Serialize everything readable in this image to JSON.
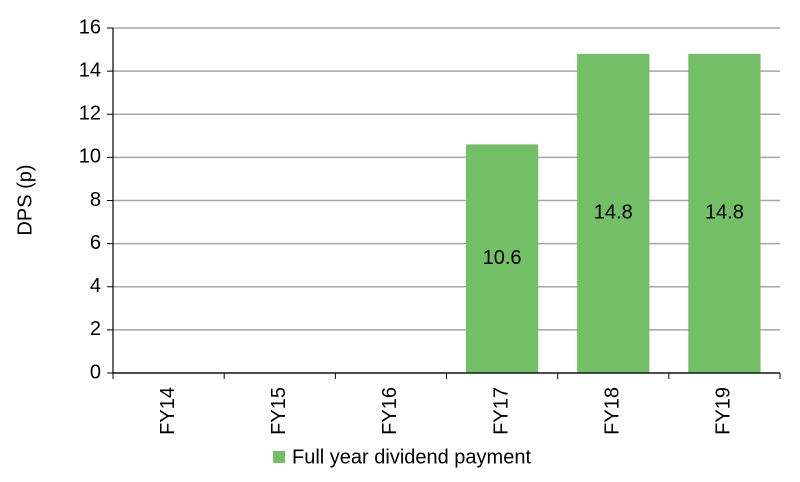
{
  "chart_data": {
    "type": "bar",
    "y_label": "DPS (p)",
    "categories": [
      "FY14",
      "FY15",
      "FY16",
      "FY17",
      "FY18",
      "FY19"
    ],
    "series": [
      {
        "name": "Full year dividend payment",
        "color": "#72bf65",
        "values": [
          null,
          null,
          null,
          10.6,
          14.8,
          14.8
        ]
      }
    ],
    "ylim": [
      0,
      16
    ],
    "yticks": [
      0,
      2,
      4,
      6,
      8,
      10,
      12,
      14,
      16
    ],
    "grid": true,
    "legend": "bottom"
  }
}
